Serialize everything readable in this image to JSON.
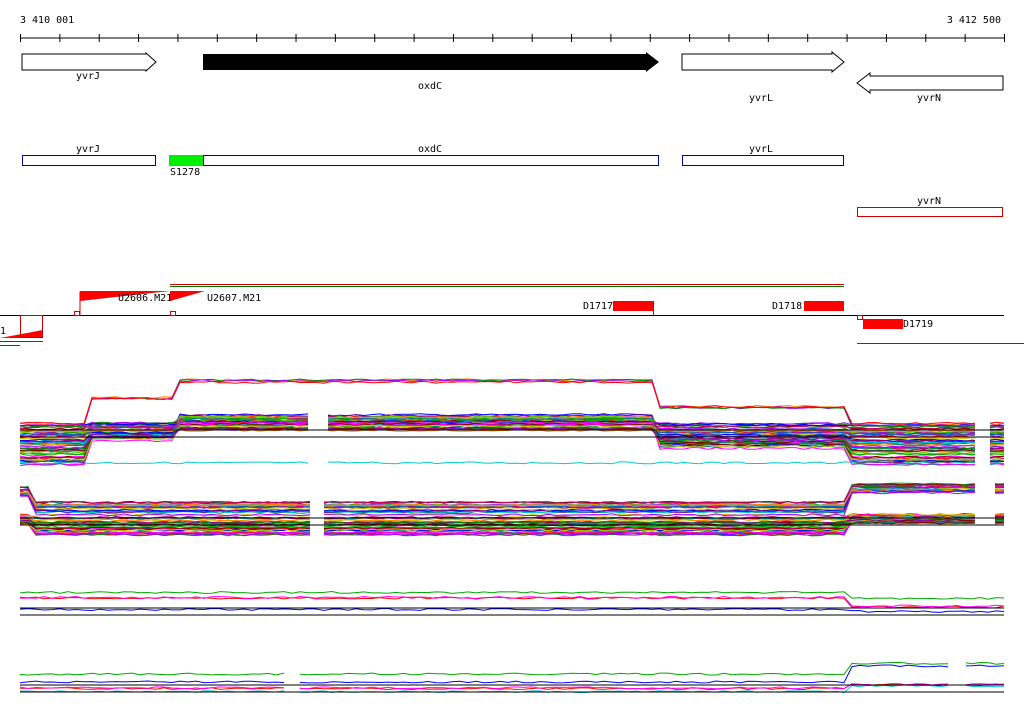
{
  "ruler": {
    "start": "3 410 001",
    "end": "3 412 500"
  },
  "genes": [
    {
      "label": "yvrJ"
    },
    {
      "label": "oxdC"
    },
    {
      "label": "yvrL"
    },
    {
      "label": "yvrN"
    }
  ],
  "transcripts": [
    {
      "label": "yvrJ"
    },
    {
      "label": "oxdC"
    },
    {
      "label": "yvrL"
    },
    {
      "label": "yvrN"
    }
  ],
  "segment": {
    "label": "S1278"
  },
  "features": [
    {
      "label": "U2606.M21"
    },
    {
      "label": "U2607.M21"
    },
    {
      "label": "D1717"
    },
    {
      "label": "D1718"
    },
    {
      "label": "D1719"
    }
  ],
  "edge_label": "1"
}
